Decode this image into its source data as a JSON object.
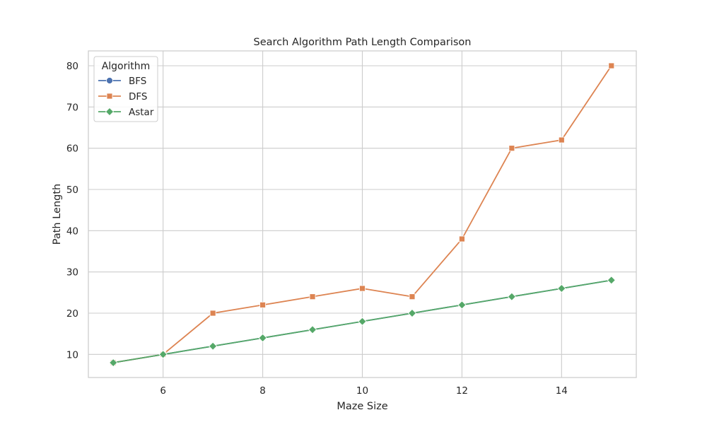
{
  "chart_data": {
    "type": "line",
    "title": "Search Algorithm Path Length Comparison",
    "xlabel": "Maze Size",
    "ylabel": "Path Length",
    "x": [
      5,
      6,
      7,
      8,
      9,
      10,
      11,
      12,
      13,
      14,
      15
    ],
    "xlim": [
      4.5,
      15.5
    ],
    "ylim": [
      4.4,
      83.6
    ],
    "xticks": [
      6,
      8,
      10,
      12,
      14
    ],
    "yticks": [
      10,
      20,
      30,
      40,
      50,
      60,
      70,
      80
    ],
    "grid": true,
    "legend": {
      "title": "Algorithm",
      "placement": "top-left"
    },
    "series": [
      {
        "name": "BFS",
        "marker": "circle",
        "color": "#4c72b0",
        "values": [
          8,
          10,
          12,
          14,
          16,
          18,
          20,
          22,
          24,
          26,
          28
        ]
      },
      {
        "name": "DFS",
        "marker": "square",
        "color": "#dd8452",
        "values": [
          8,
          10,
          20,
          22,
          24,
          26,
          24,
          38,
          60,
          62,
          80
        ]
      },
      {
        "name": "Astar",
        "marker": "diamond",
        "color": "#55a868",
        "values": [
          8,
          10,
          12,
          14,
          16,
          18,
          20,
          22,
          24,
          26,
          28
        ]
      }
    ]
  }
}
